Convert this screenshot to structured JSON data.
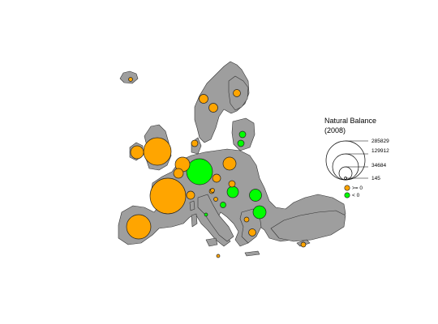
{
  "legend": {
    "title_line1": "Natural Balance",
    "title_line2": "(2008)",
    "sizes": [
      "285829",
      "129912",
      "34684",
      "145"
    ],
    "positive_label": ">= 0",
    "negative_label": "< 0"
  },
  "colors": {
    "positive": "#ffa500",
    "negative": "#00ff00",
    "land": "#9e9e9e"
  },
  "bubbles": [
    {
      "id": "iceland",
      "sign": "positive",
      "r": 2.5
    },
    {
      "id": "norway",
      "sign": "positive",
      "r": 5.5
    },
    {
      "id": "sweden",
      "sign": "positive",
      "r": 5.5
    },
    {
      "id": "finland",
      "sign": "positive",
      "r": 4.5
    },
    {
      "id": "estonia",
      "sign": "negative",
      "r": 4
    },
    {
      "id": "latvia",
      "sign": "negative",
      "r": 4
    },
    {
      "id": "ireland",
      "sign": "positive",
      "r": 8
    },
    {
      "id": "uk",
      "sign": "positive",
      "r": 17
    },
    {
      "id": "denmark",
      "sign": "positive",
      "r": 4
    },
    {
      "id": "netherlands",
      "sign": "positive",
      "r": 9
    },
    {
      "id": "belgium",
      "sign": "positive",
      "r": 6
    },
    {
      "id": "germany",
      "sign": "negative",
      "r": 16
    },
    {
      "id": "poland",
      "sign": "positive",
      "r": 8
    },
    {
      "id": "czechia",
      "sign": "positive",
      "r": 5
    },
    {
      "id": "slovakia",
      "sign": "positive",
      "r": 4
    },
    {
      "id": "hungary",
      "sign": "negative",
      "r": 7
    },
    {
      "id": "romania",
      "sign": "negative",
      "r": 7.5
    },
    {
      "id": "bulgaria",
      "sign": "negative",
      "r": 8
    },
    {
      "id": "france",
      "sign": "positive",
      "r": 22
    },
    {
      "id": "switzerland",
      "sign": "positive",
      "r": 5
    },
    {
      "id": "austria",
      "sign": "positive",
      "r": 3
    },
    {
      "id": "slovenia",
      "sign": "positive",
      "r": 2.5
    },
    {
      "id": "croatia",
      "sign": "negative",
      "r": 3.5
    },
    {
      "id": "bosnia",
      "sign": "positive",
      "r": 2.5
    },
    {
      "id": "italy",
      "sign": "negative",
      "r": 2
    },
    {
      "id": "spain",
      "sign": "positive",
      "r": 15
    },
    {
      "id": "greece",
      "sign": "positive",
      "r": 4.5
    },
    {
      "id": "macedonia",
      "sign": "positive",
      "r": 3
    },
    {
      "id": "malta",
      "sign": "positive",
      "r": 2
    },
    {
      "id": "cyprus",
      "sign": "positive",
      "r": 3
    }
  ]
}
